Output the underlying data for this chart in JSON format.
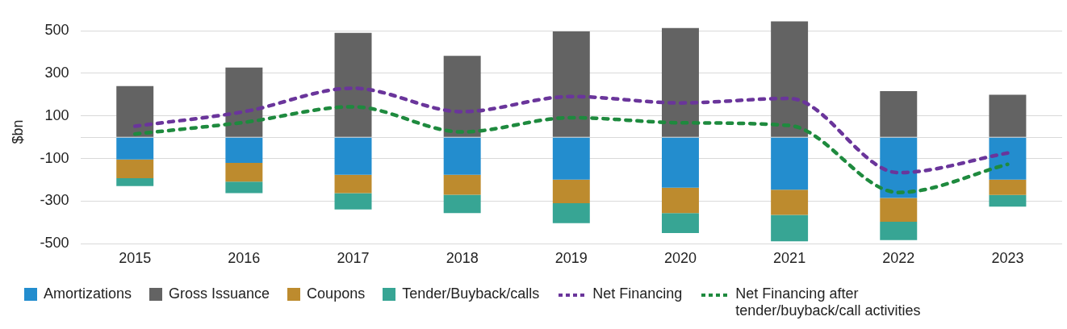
{
  "chart_data": {
    "type": "bar",
    "ylabel": "$bn",
    "stacked": true,
    "grid": "y",
    "legend": "bottom",
    "categories": [
      "2015",
      "2016",
      "2017",
      "2018",
      "2019",
      "2020",
      "2021",
      "2022",
      "2023"
    ],
    "ylim": [
      -500,
      550
    ],
    "yticks": [
      -500,
      -300,
      -100,
      {
        "value": 0,
        "label": null
      },
      100,
      300,
      500
    ],
    "series": [
      {
        "name": "Amortizations",
        "color": "#238dce",
        "values": [
          -104,
          -120,
          -176,
          -176,
          -199,
          -237,
          -246,
          -285,
          -199
        ]
      },
      {
        "name": "Gross Issuance",
        "color": "#636363",
        "values": [
          240,
          327,
          490,
          382,
          496,
          512,
          544,
          216,
          199
        ]
      },
      {
        "name": "Coupons",
        "color": "#bd8b2e",
        "values": [
          -88,
          -88,
          -86,
          -94,
          -110,
          -119,
          -118,
          -111,
          -72
        ]
      },
      {
        "name": "Tender/Buyback/calls",
        "color": "#37a594",
        "values": [
          -37,
          -54,
          -77,
          -86,
          -94,
          -93,
          -124,
          -86,
          -54
        ]
      },
      {
        "name": "Net Financing",
        "type": "line",
        "line_style": "dashed",
        "marker": "none",
        "color": "#6a359b",
        "values": [
          52,
          120,
          230,
          120,
          191,
          161,
          182,
          -166,
          -74
        ]
      },
      {
        "name": "Net Financing after tender/buyback/call activities",
        "type": "line",
        "line_style": "dashed",
        "marker": "none",
        "color": "#1e8a3e",
        "values": [
          15,
          70,
          143,
          25,
          92,
          68,
          55,
          -259,
          -127
        ]
      }
    ]
  }
}
